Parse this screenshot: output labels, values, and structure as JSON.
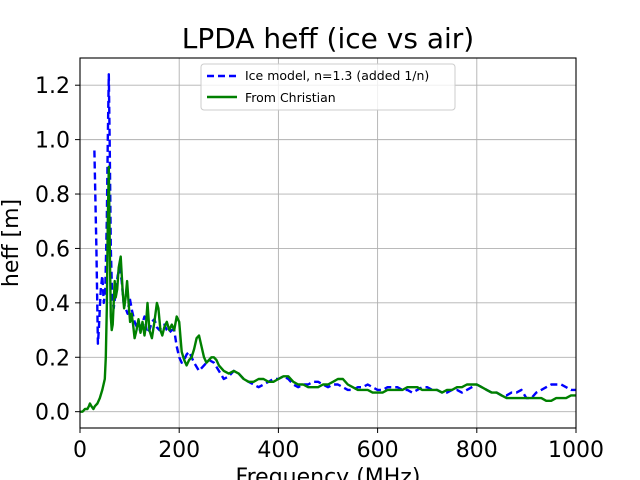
{
  "chart_data": {
    "type": "line",
    "title": "LPDA heff (ice vs air)",
    "xlabel": "Frequency (MHz)",
    "ylabel": "heff [m]",
    "xlim": [
      0,
      1000
    ],
    "ylim": [
      -0.06,
      1.3
    ],
    "xticks": [
      0,
      200,
      400,
      600,
      800,
      1000
    ],
    "xtick_labels": [
      "0",
      "200",
      "400",
      "600",
      "800",
      "1000"
    ],
    "yticks": [
      0.0,
      0.2,
      0.4,
      0.6,
      0.8,
      1.0,
      1.2
    ],
    "ytick_labels": [
      "0.0",
      "0.2",
      "0.4",
      "0.6",
      "0.8",
      "1.0",
      "1.2"
    ],
    "grid": true,
    "legend_position": "top-center",
    "series": [
      {
        "name": "Ice model, n=1.3 (added 1/n)",
        "color": "#0000ff",
        "style": "dashed",
        "x": [
          29,
          33,
          36,
          38,
          40,
          42,
          45,
          48,
          51,
          54,
          56,
          58,
          60,
          62,
          65,
          68,
          72,
          76,
          80,
          84,
          88,
          92,
          96,
          100,
          105,
          110,
          115,
          120,
          125,
          130,
          135,
          140,
          145,
          150,
          155,
          160,
          165,
          170,
          175,
          180,
          185,
          190,
          195,
          200,
          205,
          210,
          215,
          220,
          225,
          230,
          240,
          250,
          260,
          270,
          280,
          290,
          300,
          310,
          320,
          330,
          340,
          350,
          360,
          370,
          380,
          390,
          400,
          410,
          420,
          430,
          440,
          450,
          460,
          470,
          480,
          490,
          500,
          510,
          520,
          530,
          540,
          550,
          560,
          570,
          580,
          590,
          600,
          610,
          620,
          630,
          640,
          650,
          660,
          670,
          680,
          690,
          700,
          710,
          720,
          730,
          740,
          750,
          760,
          770,
          780,
          790,
          800,
          810,
          820,
          830,
          840,
          850,
          860,
          870,
          880,
          890,
          900,
          910,
          920,
          930,
          940,
          950,
          960,
          970,
          980,
          990,
          1000
        ],
        "y": [
          0.96,
          0.6,
          0.25,
          0.3,
          0.38,
          0.45,
          0.5,
          0.4,
          0.45,
          0.7,
          1.0,
          1.24,
          0.95,
          0.6,
          0.42,
          0.38,
          0.44,
          0.5,
          0.53,
          0.48,
          0.4,
          0.38,
          0.36,
          0.42,
          0.37,
          0.33,
          0.31,
          0.3,
          0.32,
          0.35,
          0.29,
          0.3,
          0.33,
          0.34,
          0.31,
          0.3,
          0.31,
          0.32,
          0.3,
          0.29,
          0.3,
          0.3,
          0.24,
          0.2,
          0.18,
          0.19,
          0.21,
          0.22,
          0.2,
          0.18,
          0.15,
          0.17,
          0.19,
          0.18,
          0.15,
          0.12,
          0.13,
          0.15,
          0.14,
          0.12,
          0.11,
          0.1,
          0.09,
          0.1,
          0.11,
          0.12,
          0.12,
          0.13,
          0.12,
          0.1,
          0.09,
          0.1,
          0.1,
          0.11,
          0.11,
          0.1,
          0.09,
          0.1,
          0.1,
          0.09,
          0.08,
          0.08,
          0.09,
          0.09,
          0.1,
          0.09,
          0.08,
          0.08,
          0.09,
          0.09,
          0.09,
          0.08,
          0.08,
          0.07,
          0.08,
          0.09,
          0.09,
          0.08,
          0.08,
          0.07,
          0.07,
          0.08,
          0.08,
          0.07,
          0.08,
          0.09,
          0.1,
          0.09,
          0.08,
          0.07,
          0.07,
          0.06,
          0.06,
          0.07,
          0.07,
          0.08,
          0.05,
          0.05,
          0.07,
          0.08,
          0.09,
          0.1,
          0.1,
          0.1,
          0.09,
          0.08,
          0.08
        ]
      },
      {
        "name": "From Christian",
        "color": "#008000",
        "style": "solid",
        "x": [
          0,
          5,
          10,
          15,
          18,
          20,
          23,
          27,
          30,
          35,
          40,
          45,
          50,
          52,
          54,
          56,
          58,
          60,
          62,
          64,
          66,
          68,
          70,
          72,
          75,
          78,
          82,
          86,
          89,
          92,
          95,
          98,
          101,
          104,
          107,
          110,
          114,
          118,
          122,
          126,
          130,
          133,
          136,
          140,
          145,
          150,
          155,
          158,
          162,
          166,
          170,
          175,
          180,
          185,
          190,
          195,
          200,
          205,
          210,
          215,
          220,
          225,
          230,
          235,
          240,
          245,
          250,
          255,
          260,
          265,
          270,
          275,
          280,
          290,
          300,
          310,
          320,
          330,
          340,
          350,
          360,
          370,
          380,
          390,
          400,
          410,
          420,
          430,
          440,
          450,
          460,
          470,
          480,
          490,
          500,
          510,
          520,
          530,
          540,
          550,
          560,
          570,
          580,
          590,
          600,
          610,
          620,
          630,
          640,
          650,
          660,
          670,
          680,
          690,
          700,
          710,
          720,
          730,
          740,
          750,
          760,
          770,
          780,
          790,
          800,
          810,
          820,
          830,
          840,
          850,
          860,
          870,
          880,
          890,
          900,
          910,
          920,
          930,
          940,
          950,
          960,
          970,
          980,
          990,
          1000
        ],
        "y": [
          0.0,
          0.0,
          0.01,
          0.01,
          0.02,
          0.03,
          0.02,
          0.01,
          0.02,
          0.03,
          0.05,
          0.08,
          0.12,
          0.2,
          0.38,
          0.7,
          0.9,
          0.6,
          0.35,
          0.3,
          0.32,
          0.4,
          0.48,
          0.42,
          0.45,
          0.53,
          0.57,
          0.44,
          0.38,
          0.42,
          0.48,
          0.4,
          0.33,
          0.36,
          0.32,
          0.27,
          0.3,
          0.34,
          0.29,
          0.33,
          0.28,
          0.32,
          0.4,
          0.3,
          0.27,
          0.33,
          0.4,
          0.38,
          0.3,
          0.28,
          0.31,
          0.33,
          0.3,
          0.32,
          0.3,
          0.35,
          0.33,
          0.22,
          0.19,
          0.17,
          0.19,
          0.2,
          0.23,
          0.27,
          0.28,
          0.24,
          0.2,
          0.18,
          0.19,
          0.2,
          0.2,
          0.19,
          0.17,
          0.15,
          0.14,
          0.15,
          0.14,
          0.12,
          0.11,
          0.11,
          0.12,
          0.12,
          0.11,
          0.11,
          0.12,
          0.13,
          0.13,
          0.11,
          0.1,
          0.1,
          0.09,
          0.09,
          0.09,
          0.1,
          0.1,
          0.11,
          0.12,
          0.12,
          0.1,
          0.09,
          0.08,
          0.08,
          0.08,
          0.07,
          0.07,
          0.07,
          0.08,
          0.08,
          0.08,
          0.08,
          0.09,
          0.09,
          0.09,
          0.08,
          0.08,
          0.08,
          0.08,
          0.07,
          0.08,
          0.08,
          0.09,
          0.09,
          0.1,
          0.1,
          0.1,
          0.09,
          0.08,
          0.07,
          0.07,
          0.06,
          0.05,
          0.05,
          0.05,
          0.05,
          0.05,
          0.05,
          0.05,
          0.05,
          0.04,
          0.04,
          0.05,
          0.05,
          0.05,
          0.06,
          0.06
        ]
      }
    ]
  }
}
